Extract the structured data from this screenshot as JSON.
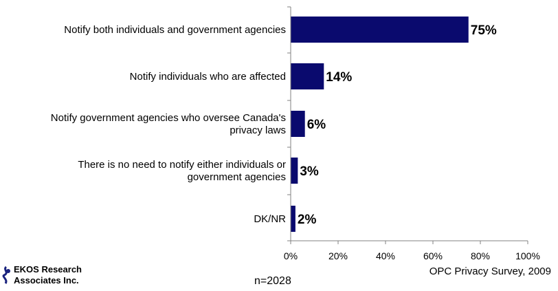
{
  "chart_data": {
    "type": "bar",
    "orientation": "horizontal",
    "categories": [
      [
        "Notify both individuals and government agencies"
      ],
      [
        "Notify individuals who are affected"
      ],
      [
        "Notify government agencies who oversee Canada's",
        "privacy laws"
      ],
      [
        "There is no need to notify either individuals or",
        "government agencies"
      ],
      [
        "DK/NR"
      ]
    ],
    "values": [
      75,
      14,
      6,
      3,
      2
    ],
    "value_labels": [
      "75%",
      "14%",
      "6%",
      "3%",
      "2%"
    ],
    "xlim": [
      0,
      100
    ],
    "x_ticks": [
      "0%",
      "20%",
      "40%",
      "60%",
      "80%",
      "100%"
    ],
    "bar_color": "#0a0a6e",
    "grid": false
  },
  "footer": {
    "logo_line1": "EKOS Research",
    "logo_line2": "Associates Inc.",
    "sample_size": "n=2028",
    "source": "OPC Privacy Survey, 2009"
  }
}
